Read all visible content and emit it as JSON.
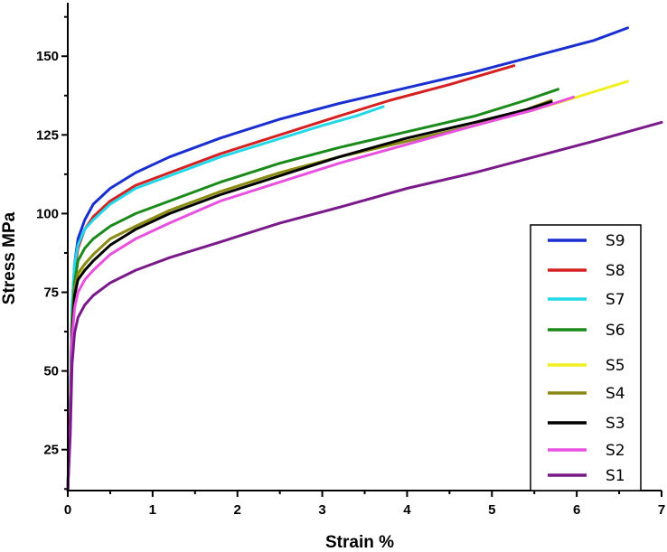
{
  "chart_data": {
    "type": "line",
    "title": "",
    "xlabel": "Strain  %",
    "ylabel": "Stress  MPa",
    "xlim": [
      0,
      7
    ],
    "ylim": [
      12,
      167
    ],
    "xticks": [
      "0",
      "1",
      "2",
      "3",
      "4",
      "5",
      "6",
      "7"
    ],
    "yticks": [
      "25",
      "50",
      "75",
      "100",
      "125",
      "150"
    ],
    "grid": false,
    "legend_position": "bottom-right",
    "series": [
      {
        "name": "S9",
        "color": "#1a2fd0",
        "x": [
          0.0,
          0.03,
          0.05,
          0.08,
          0.12,
          0.2,
          0.3,
          0.5,
          0.8,
          1.2,
          1.8,
          2.5,
          3.2,
          4.0,
          4.8,
          5.5,
          6.2,
          6.6
        ],
        "y": [
          12,
          40,
          70,
          84,
          92,
          98,
          103,
          108,
          113,
          118,
          124,
          130,
          135,
          140,
          145,
          150,
          155,
          159
        ]
      },
      {
        "name": "S8",
        "color": "#d42020",
        "x": [
          0.0,
          0.03,
          0.05,
          0.08,
          0.12,
          0.2,
          0.3,
          0.5,
          0.8,
          1.2,
          1.8,
          2.5,
          3.2,
          3.8,
          4.5,
          5.26
        ],
        "y": [
          12,
          38,
          68,
          82,
          89,
          95,
          99,
          104,
          109,
          113,
          119,
          125,
          131,
          136,
          141,
          147
        ]
      },
      {
        "name": "S7",
        "color": "#20d8e8",
        "x": [
          0.0,
          0.03,
          0.05,
          0.08,
          0.12,
          0.2,
          0.3,
          0.5,
          0.8,
          1.2,
          1.8,
          2.4,
          3.0,
          3.4,
          3.72
        ],
        "y": [
          12,
          40,
          70,
          84,
          90,
          95,
          98,
          103,
          108,
          112,
          118,
          123,
          128,
          131,
          134
        ]
      },
      {
        "name": "S6",
        "color": "#1a8a1a",
        "x": [
          0.0,
          0.03,
          0.05,
          0.08,
          0.12,
          0.2,
          0.3,
          0.5,
          0.8,
          1.2,
          1.8,
          2.5,
          3.2,
          4.0,
          4.8,
          5.4,
          5.78
        ],
        "y": [
          12,
          38,
          66,
          78,
          85,
          89,
          92,
          96,
          100,
          104,
          110,
          116,
          121,
          126,
          131,
          136,
          139.5
        ]
      },
      {
        "name": "S5",
        "color": "#f0f020",
        "x": [
          0.0,
          0.03,
          0.05,
          0.08,
          0.12,
          0.2,
          0.3,
          0.5,
          0.8,
          1.2,
          1.8,
          2.5,
          3.2,
          4.0,
          4.8,
          5.5,
          6.0,
          6.6
        ],
        "y": [
          12,
          36,
          62,
          74,
          80,
          84,
          87,
          92,
          96,
          101,
          107,
          113,
          118,
          123,
          128,
          133,
          137,
          142
        ]
      },
      {
        "name": "S4",
        "color": "#8a8a18",
        "x": [
          0.0,
          0.03,
          0.05,
          0.08,
          0.12,
          0.2,
          0.3,
          0.5,
          0.8,
          1.2,
          1.8,
          2.5,
          3.2,
          4.0,
          4.8,
          5.4,
          5.7
        ],
        "y": [
          12,
          36,
          64,
          76,
          81,
          84,
          87,
          92,
          96,
          101,
          107,
          113,
          118,
          123,
          128,
          133,
          136
        ]
      },
      {
        "name": "S3",
        "color": "#000000",
        "x": [
          0.0,
          0.03,
          0.05,
          0.08,
          0.12,
          0.2,
          0.3,
          0.5,
          0.8,
          1.2,
          1.8,
          2.5,
          3.2,
          4.0,
          4.8,
          5.4,
          5.7
        ],
        "y": [
          12,
          36,
          62,
          74,
          79,
          82,
          85,
          90,
          95,
          100,
          106,
          112,
          118,
          124,
          129,
          133,
          135.5
        ]
      },
      {
        "name": "S2",
        "color": "#e850e0",
        "x": [
          0.0,
          0.03,
          0.05,
          0.08,
          0.12,
          0.2,
          0.3,
          0.5,
          0.8,
          1.2,
          1.8,
          2.5,
          3.2,
          4.0,
          4.8,
          5.5,
          5.96
        ],
        "y": [
          12,
          34,
          60,
          70,
          75,
          79,
          82,
          87,
          92,
          97,
          104,
          110,
          116,
          122,
          128,
          133,
          137
        ]
      },
      {
        "name": "S1",
        "color": "#7a1a8a",
        "x": [
          0.0,
          0.03,
          0.05,
          0.08,
          0.12,
          0.2,
          0.3,
          0.5,
          0.8,
          1.2,
          1.8,
          2.5,
          3.2,
          4.0,
          4.8,
          5.5,
          6.2,
          7.0
        ],
        "y": [
          12,
          30,
          52,
          62,
          67,
          71,
          74,
          78,
          82,
          86,
          91,
          97,
          102,
          108,
          113,
          118,
          123,
          129
        ]
      }
    ]
  }
}
